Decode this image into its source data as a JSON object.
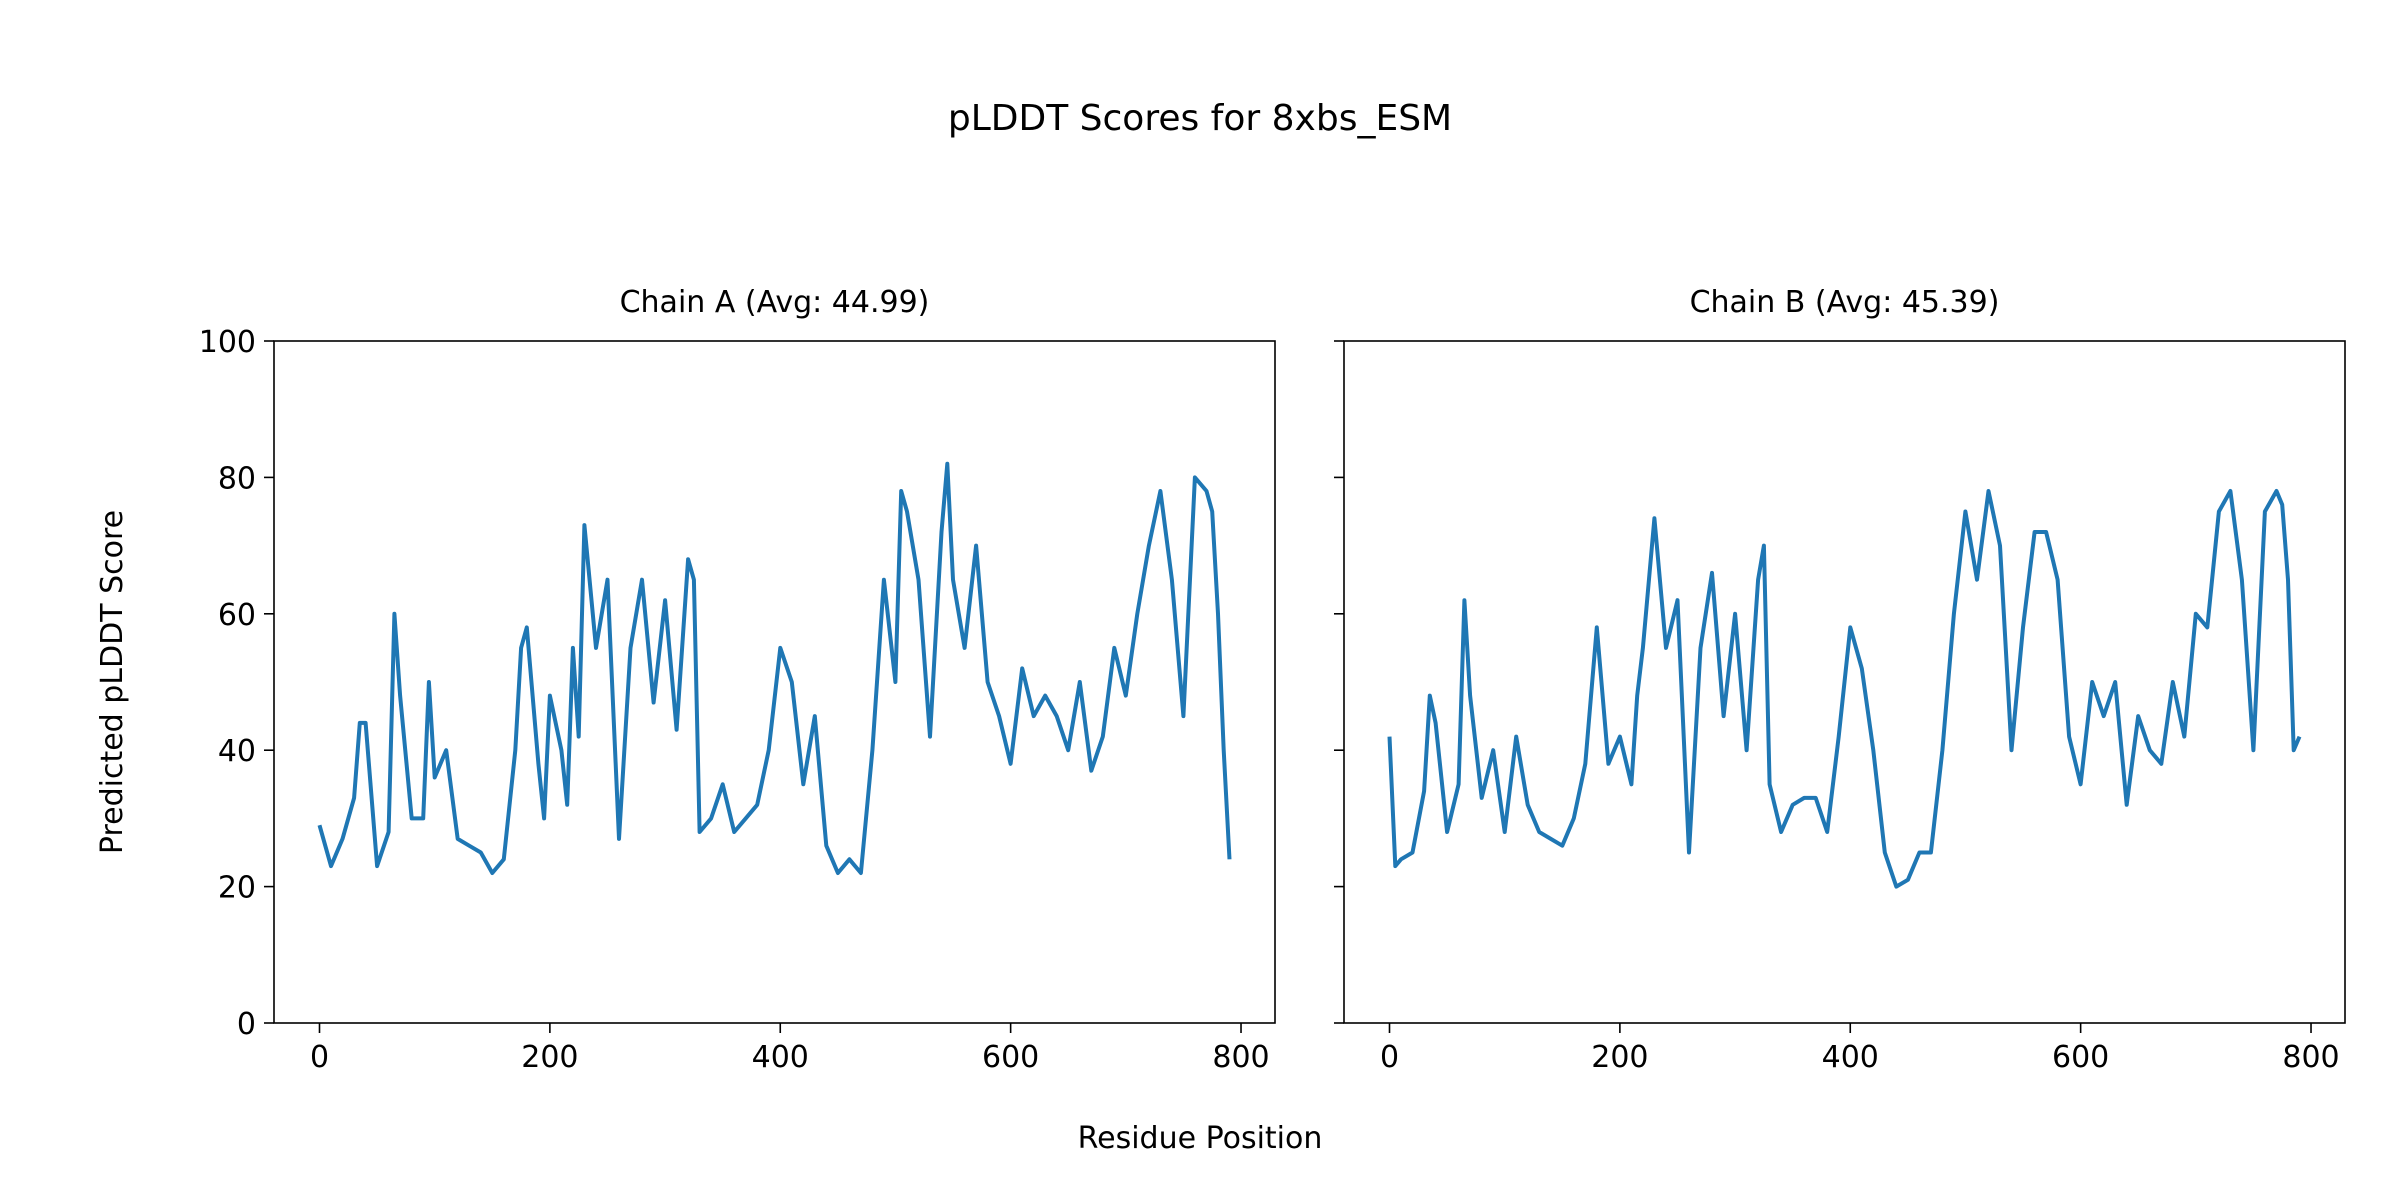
{
  "chart_data": {
    "type": "line",
    "title": "pLDDT Scores for 8xbs_ESM",
    "xlabel": "Residue Position",
    "ylabel": "Predicted pLDDT Score",
    "ylim": [
      0,
      100
    ],
    "xlim": [
      -39.5,
      829.5
    ],
    "xticks": [
      0,
      200,
      400,
      600,
      800
    ],
    "yticks": [
      0,
      20,
      40,
      60,
      80,
      100
    ],
    "grid": false,
    "line_color": "#1f77b4",
    "shared_y": true,
    "panels": [
      {
        "title": "Chain A (Avg: 44.99)",
        "x": [
          0,
          10,
          20,
          30,
          35,
          40,
          50,
          60,
          65,
          70,
          80,
          90,
          95,
          100,
          110,
          120,
          130,
          140,
          150,
          160,
          170,
          175,
          180,
          190,
          195,
          200,
          210,
          215,
          220,
          225,
          230,
          240,
          250,
          260,
          270,
          280,
          290,
          300,
          310,
          320,
          325,
          330,
          340,
          350,
          360,
          370,
          380,
          390,
          400,
          410,
          420,
          430,
          440,
          450,
          460,
          470,
          480,
          490,
          500,
          505,
          510,
          520,
          530,
          540,
          545,
          550,
          560,
          570,
          580,
          590,
          600,
          610,
          620,
          630,
          640,
          650,
          660,
          670,
          680,
          690,
          700,
          710,
          720,
          730,
          740,
          750,
          760,
          770,
          775,
          780,
          785,
          790
        ],
        "y": [
          29,
          23,
          27,
          33,
          44,
          44,
          23,
          28,
          60,
          48,
          30,
          30,
          50,
          36,
          40,
          27,
          26,
          25,
          22,
          24,
          40,
          55,
          58,
          38,
          30,
          48,
          40,
          32,
          55,
          42,
          73,
          55,
          65,
          27,
          55,
          65,
          47,
          62,
          43,
          68,
          65,
          28,
          30,
          35,
          28,
          30,
          32,
          40,
          55,
          50,
          35,
          45,
          26,
          22,
          24,
          22,
          40,
          65,
          50,
          78,
          75,
          65,
          42,
          72,
          82,
          65,
          55,
          70,
          50,
          45,
          38,
          52,
          45,
          48,
          45,
          40,
          50,
          37,
          42,
          55,
          48,
          60,
          70,
          78,
          65,
          45,
          80,
          78,
          75,
          60,
          40,
          24
        ]
      },
      {
        "title": "Chain B (Avg: 45.39)",
        "x": [
          0,
          5,
          10,
          20,
          30,
          35,
          40,
          50,
          60,
          65,
          70,
          80,
          90,
          100,
          110,
          120,
          130,
          140,
          150,
          160,
          170,
          180,
          190,
          200,
          210,
          215,
          220,
          230,
          240,
          250,
          260,
          270,
          280,
          290,
          300,
          310,
          320,
          325,
          330,
          340,
          350,
          360,
          370,
          380,
          390,
          400,
          410,
          420,
          430,
          440,
          450,
          460,
          470,
          480,
          490,
          500,
          510,
          520,
          530,
          540,
          550,
          560,
          570,
          580,
          590,
          600,
          610,
          620,
          630,
          640,
          650,
          660,
          670,
          680,
          690,
          700,
          710,
          720,
          730,
          740,
          750,
          760,
          770,
          775,
          780,
          785,
          790
        ],
        "y": [
          42,
          23,
          24,
          25,
          34,
          48,
          44,
          28,
          35,
          62,
          48,
          33,
          40,
          28,
          42,
          32,
          28,
          27,
          26,
          30,
          38,
          58,
          38,
          42,
          35,
          48,
          55,
          74,
          55,
          62,
          25,
          55,
          66,
          45,
          60,
          40,
          65,
          70,
          35,
          28,
          32,
          33,
          33,
          28,
          42,
          58,
          52,
          40,
          25,
          20,
          21,
          25,
          25,
          40,
          60,
          75,
          65,
          78,
          70,
          40,
          58,
          72,
          72,
          65,
          42,
          35,
          50,
          45,
          50,
          32,
          45,
          40,
          38,
          50,
          42,
          60,
          58,
          75,
          78,
          65,
          40,
          75,
          78,
          76,
          65,
          40,
          42
        ]
      }
    ]
  }
}
